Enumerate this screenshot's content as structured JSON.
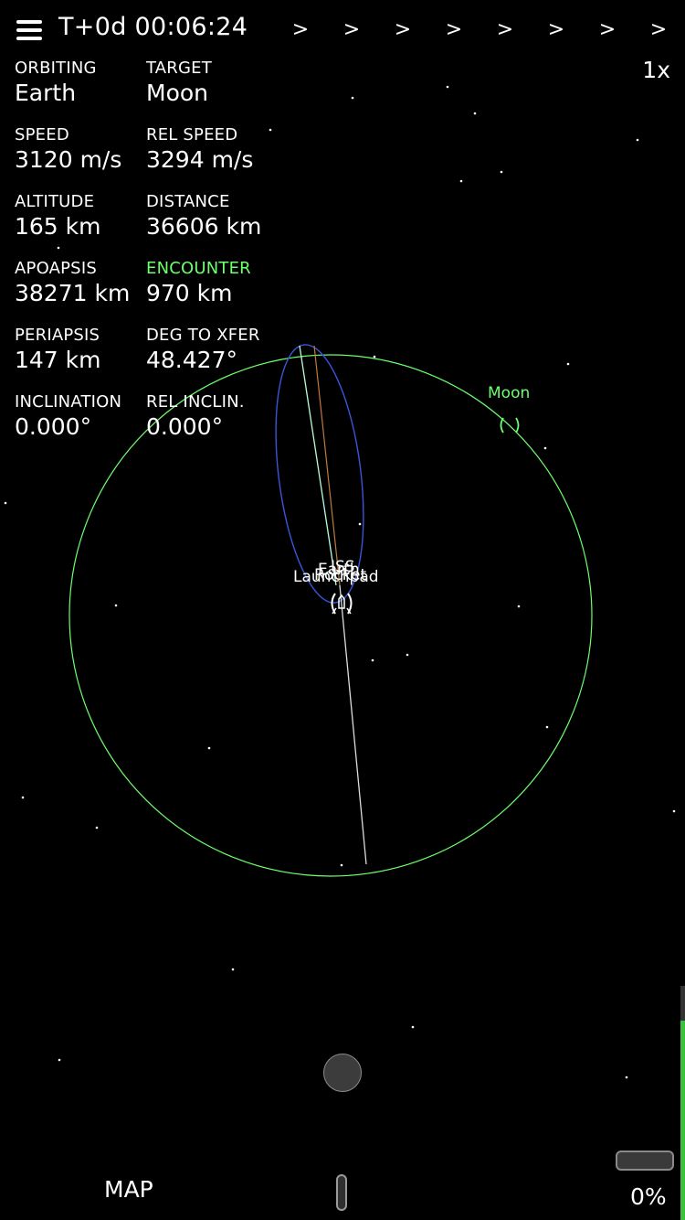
{
  "header": {
    "menu_icon": "hamburger-menu-icon",
    "clock": "T+0d 00:06:24",
    "warp_arrows": [
      ">",
      ">",
      ">",
      ">",
      ">",
      ">",
      ">",
      ">"
    ],
    "time_warp": "1x"
  },
  "stats": {
    "orbiting": {
      "label": "ORBITING",
      "value": "Earth"
    },
    "target": {
      "label": "TARGET",
      "value": "Moon"
    },
    "speed": {
      "label": "SPEED",
      "value": "3120 m/s"
    },
    "rel_speed": {
      "label": "REL SPEED",
      "value": "3294 m/s"
    },
    "altitude": {
      "label": "ALTITUDE",
      "value": "165 km"
    },
    "distance": {
      "label": "DISTANCE",
      "value": "36606 km"
    },
    "apoapsis": {
      "label": "APOAPSIS",
      "value": "38271 km"
    },
    "encounter": {
      "label": "ENCOUNTER",
      "value": "970 km"
    },
    "periapsis": {
      "label": "PERIAPSIS",
      "value": "147 km"
    },
    "deg_to_xfer": {
      "label": "DEG TO XFER",
      "value": "48.427°"
    },
    "inclination": {
      "label": "INCLINATION",
      "value": "0.000°"
    },
    "rel_inclin": {
      "label": "REL INCLIN.",
      "value": "0.000°"
    }
  },
  "map": {
    "moon_label": "Moon",
    "overlapping_labels": [
      "Earth",
      "ISS",
      "Rocket",
      "Launchpad"
    ],
    "colors": {
      "moon_orbit": "#6dff6d",
      "craft_orbit": "#3a55d8",
      "trajectory": "#dddddd",
      "target_line": "#c07a3a",
      "background": "#000000"
    }
  },
  "footer": {
    "map_button": "MAP",
    "throttle_percent": "0%"
  }
}
